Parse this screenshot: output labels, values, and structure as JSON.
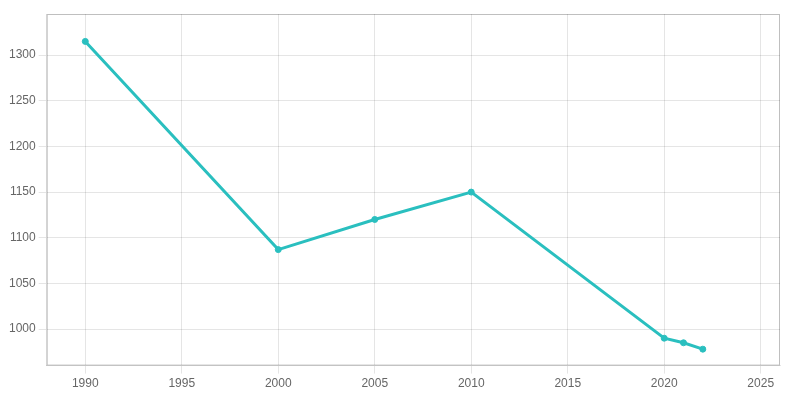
{
  "chart_data": {
    "type": "line",
    "x": [
      1990,
      2000,
      2005,
      2010,
      2020,
      2021,
      2022
    ],
    "values": [
      1315,
      1087,
      1120,
      1150,
      990,
      985,
      978
    ],
    "color": "#2abfbf",
    "marker": "circle",
    "xlim": [
      1988,
      2026
    ],
    "ylim": [
      960,
      1345
    ],
    "xticks": [
      1990,
      1995,
      2000,
      2005,
      2010,
      2015,
      2020,
      2025
    ],
    "yticks": [
      1000,
      1050,
      1100,
      1150,
      1200,
      1250,
      1300
    ],
    "grid": true
  }
}
